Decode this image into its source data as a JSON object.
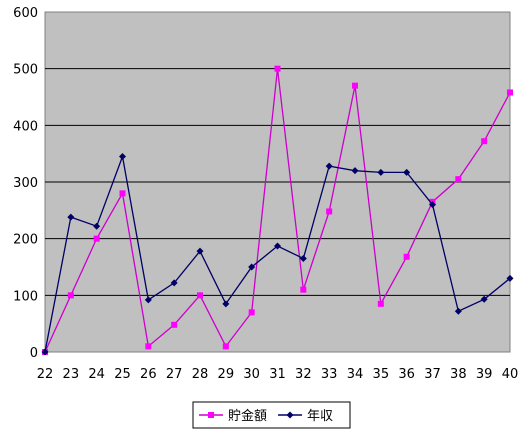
{
  "chart_data": {
    "type": "line",
    "x": [
      22,
      23,
      24,
      25,
      26,
      27,
      28,
      29,
      30,
      31,
      32,
      33,
      34,
      35,
      36,
      37,
      38,
      39,
      40
    ],
    "series": [
      {
        "name": "貯金額",
        "color": "#cc00cc",
        "marker": "square",
        "values": [
          0,
          100,
          200,
          280,
          10,
          48,
          100,
          10,
          70,
          500,
          110,
          248,
          470,
          85,
          168,
          265,
          305,
          372,
          458
        ]
      },
      {
        "name": "年収",
        "color": "#000066",
        "marker": "diamond",
        "values": [
          0,
          238,
          222,
          345,
          92,
          122,
          178,
          85,
          150,
          187,
          165,
          328,
          320,
          317,
          317,
          260,
          72,
          93,
          130
        ]
      }
    ],
    "ylim": [
      0,
      600
    ],
    "yticks": [
      0,
      100,
      200,
      300,
      400,
      500,
      600
    ],
    "xtick_labels": [
      "22",
      "23",
      "24",
      "25",
      "26",
      "27",
      "28",
      "29",
      "30",
      "31",
      "32",
      "33",
      "34",
      "35",
      "36",
      "37",
      "38",
      "39",
      "40"
    ],
    "grid": true,
    "plot_background": "#c0c0c0",
    "legend_position": "bottom-center",
    "xlabel": "",
    "ylabel": "",
    "title": ""
  }
}
